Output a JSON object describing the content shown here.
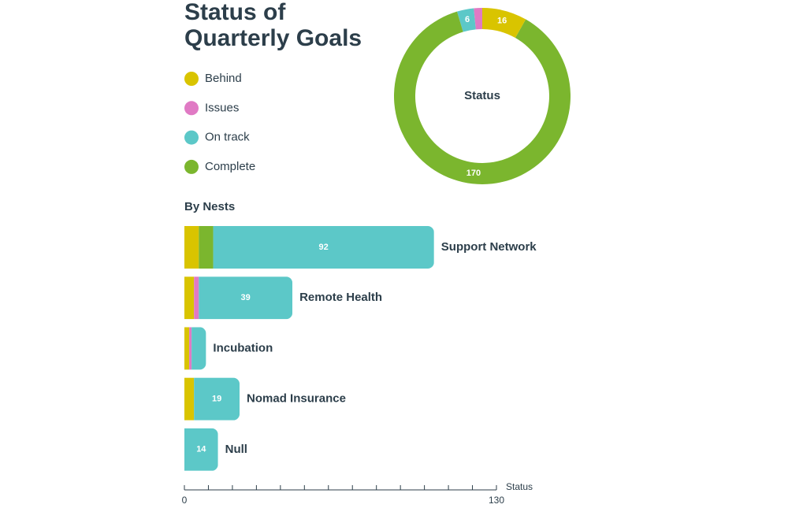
{
  "title": "Status of Quarterly Goals",
  "chart_data": [
    {
      "type": "pie",
      "title": "Status",
      "values": [
        16,
        3,
        170,
        6
      ],
      "hole": true
    },
    {
      "type": "bar",
      "orientation": "horizontal",
      "stacked": true,
      "title": "By Nests",
      "categories": [
        "Support Network",
        "Remote Health",
        "Incubation",
        "Nomad Insurance",
        "Null"
      ],
      "series": [
        {
          "name": "Behind",
          "color": "#d9c400",
          "values": [
            6,
            4,
            2,
            4,
            0
          ]
        },
        {
          "name": "Issues",
          "color": "#e07ac4",
          "values": [
            0,
            2,
            1,
            0,
            0
          ]
        },
        {
          "name": "Complete",
          "color": "#7bb62e",
          "values": [
            6,
            0,
            0,
            0,
            0
          ]
        },
        {
          "name": "On track",
          "color": "#5cc8c8",
          "values": [
            92,
            39,
            6,
            19,
            14
          ]
        }
      ],
      "xlabel": "Status",
      "xlim": [
        0,
        130
      ],
      "xticks": [
        0,
        130
      ],
      "minor_xticks": [
        10,
        20,
        30,
        40,
        50,
        60,
        70,
        80,
        90,
        100,
        110,
        120
      ]
    }
  ]
}
